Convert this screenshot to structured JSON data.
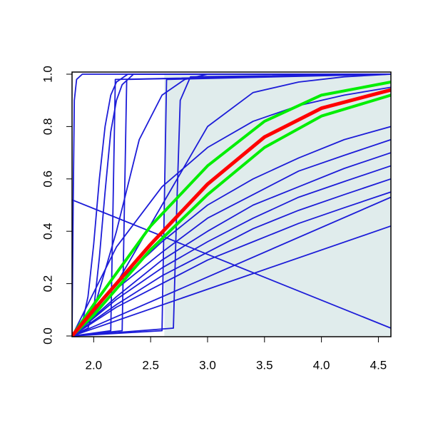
{
  "chart_data": {
    "type": "line",
    "xlim": [
      1.81,
      4.61
    ],
    "ylim": [
      0,
      1
    ],
    "xticks": [
      {
        "value": 2,
        "label": "2.0"
      },
      {
        "value": 2.5,
        "label": "2.5"
      },
      {
        "value": 3,
        "label": "3.0"
      },
      {
        "value": 3.5,
        "label": "3.5"
      },
      {
        "value": 4,
        "label": "4.0"
      },
      {
        "value": 4.5,
        "label": "4.5"
      }
    ],
    "yticks": [
      {
        "value": 0,
        "label": "0.0"
      },
      {
        "value": 0.2,
        "label": "0.2"
      },
      {
        "value": 0.4,
        "label": "0.4"
      },
      {
        "value": 0.6,
        "label": "0.6"
      },
      {
        "value": 0.8,
        "label": "0.8"
      },
      {
        "value": 1,
        "label": "1.0"
      }
    ],
    "shade": {
      "color": "#e0ecec",
      "x": [
        2.62,
        4.61
      ],
      "lower": [
        0,
        0
      ],
      "upper": [
        1,
        1
      ]
    },
    "series": [
      {
        "color": "#1c1cd8",
        "x": [
          1.81,
          1.82,
          1.83,
          1.85,
          1.9,
          4.61
        ],
        "values": [
          0,
          0.5,
          0.9,
          0.98,
          1,
          1
        ]
      },
      {
        "color": "#1c1cd8",
        "x": [
          1.81,
          1.9,
          1.95,
          2.0,
          2.05,
          2.1,
          2.15,
          2.2,
          2.3,
          4.61
        ],
        "values": [
          0,
          0.05,
          0.15,
          0.35,
          0.6,
          0.8,
          0.92,
          0.97,
          1,
          1
        ]
      },
      {
        "color": "#1c1cd8",
        "x": [
          1.81,
          1.95,
          2.0,
          2.05,
          2.1,
          2.15,
          2.2,
          2.25,
          2.35,
          4.61
        ],
        "values": [
          0,
          0.03,
          0.1,
          0.3,
          0.55,
          0.78,
          0.9,
          0.96,
          1,
          1
        ]
      },
      {
        "color": "#1c1cd8",
        "x": [
          1.81,
          2.15,
          2.17,
          2.19,
          4.61
        ],
        "values": [
          0,
          0.02,
          0.5,
          0.98,
          1
        ]
      },
      {
        "color": "#1c1cd8",
        "x": [
          1.81,
          2.25,
          2.27,
          2.29,
          4.61
        ],
        "values": [
          0,
          0.02,
          0.5,
          0.98,
          1
        ]
      },
      {
        "color": "#1c1cd8",
        "x": [
          1.81,
          2.6,
          2.62,
          2.64,
          4.61
        ],
        "values": [
          0,
          0.02,
          0.5,
          0.98,
          1
        ]
      },
      {
        "color": "#1c1cd8",
        "x": [
          1.81,
          2.7,
          2.73,
          2.76,
          2.85,
          4.61
        ],
        "values": [
          0,
          0.03,
          0.5,
          0.9,
          0.99,
          1
        ]
      },
      {
        "color": "#1c1cd8",
        "x": [
          1.81,
          2.0,
          2.2,
          2.4,
          2.6,
          2.8,
          3.0,
          4.61
        ],
        "values": [
          0,
          0.1,
          0.4,
          0.75,
          0.92,
          0.98,
          1,
          1
        ]
      },
      {
        "color": "#1c1cd8",
        "x": [
          1.81,
          2.2,
          2.6,
          3.0,
          3.4,
          3.8,
          4.2,
          4.61
        ],
        "values": [
          0,
          0.2,
          0.5,
          0.8,
          0.93,
          0.97,
          0.99,
          1
        ]
      },
      {
        "color": "#1c1cd8",
        "x": [
          1.81,
          2.2,
          2.6,
          3.0,
          3.4,
          3.8,
          4.2,
          4.61
        ],
        "values": [
          0,
          0.34,
          0.57,
          0.72,
          0.82,
          0.88,
          0.92,
          0.95
        ]
      },
      {
        "color": "#1c1cd8",
        "x": [
          1.81,
          2.2,
          2.6,
          3.0,
          3.4,
          3.8,
          4.2,
          4.61
        ],
        "values": [
          0,
          0.2,
          0.36,
          0.5,
          0.6,
          0.68,
          0.75,
          0.8
        ]
      },
      {
        "color": "#1c1cd8",
        "x": [
          1.81,
          2.2,
          2.6,
          3.0,
          3.4,
          3.8,
          4.2,
          4.61
        ],
        "values": [
          0,
          0.18,
          0.32,
          0.45,
          0.54,
          0.63,
          0.69,
          0.75
        ]
      },
      {
        "color": "#1c1cd8",
        "x": [
          1.81,
          2.2,
          2.6,
          3.0,
          3.4,
          3.8,
          4.2,
          4.61
        ],
        "values": [
          0,
          0.15,
          0.29,
          0.4,
          0.5,
          0.57,
          0.64,
          0.7
        ]
      },
      {
        "color": "#1c1cd8",
        "x": [
          1.81,
          2.2,
          2.6,
          3.0,
          3.4,
          3.8,
          4.2,
          4.61
        ],
        "values": [
          0,
          0.14,
          0.26,
          0.36,
          0.45,
          0.53,
          0.59,
          0.65
        ]
      },
      {
        "color": "#1c1cd8",
        "x": [
          1.81,
          2.2,
          2.6,
          3.0,
          3.4,
          3.8,
          4.2,
          4.61
        ],
        "values": [
          0,
          0.12,
          0.23,
          0.32,
          0.41,
          0.48,
          0.54,
          0.6
        ]
      },
      {
        "color": "#1c1cd8",
        "x": [
          1.81,
          2.2,
          2.6,
          3.0,
          3.4,
          3.8,
          4.2,
          4.61
        ],
        "values": [
          0,
          0.11,
          0.2,
          0.29,
          0.36,
          0.43,
          0.49,
          0.55
        ]
      },
      {
        "color": "#1c1cd8",
        "x": [
          1.81,
          4.61
        ],
        "values": [
          0.52,
          0.03
        ]
      },
      {
        "color": "#1c1cd8",
        "x": [
          1.81,
          4.61
        ],
        "values": [
          0,
          0.42
        ]
      },
      {
        "color": "#1c1cd8",
        "x": [
          1.81,
          4.61
        ],
        "values": [
          0,
          0.53
        ]
      },
      {
        "color": "#00ee00",
        "width": 4,
        "x": [
          1.81,
          2.0,
          2.5,
          3.0,
          3.5,
          4.0,
          4.61
        ],
        "values": [
          0,
          0.12,
          0.42,
          0.65,
          0.82,
          0.92,
          0.97
        ]
      },
      {
        "color": "#00ee00",
        "width": 4,
        "x": [
          1.81,
          2.0,
          2.5,
          3.0,
          3.5,
          4.0,
          4.61
        ],
        "values": [
          0,
          0.08,
          0.33,
          0.54,
          0.72,
          0.84,
          0.92
        ]
      },
      {
        "color": "#ff0000",
        "width": 5,
        "x": [
          1.81,
          2.0,
          2.5,
          3.0,
          3.5,
          4.0,
          4.61
        ],
        "values": [
          0,
          0.1,
          0.35,
          0.58,
          0.76,
          0.87,
          0.94
        ]
      }
    ]
  }
}
